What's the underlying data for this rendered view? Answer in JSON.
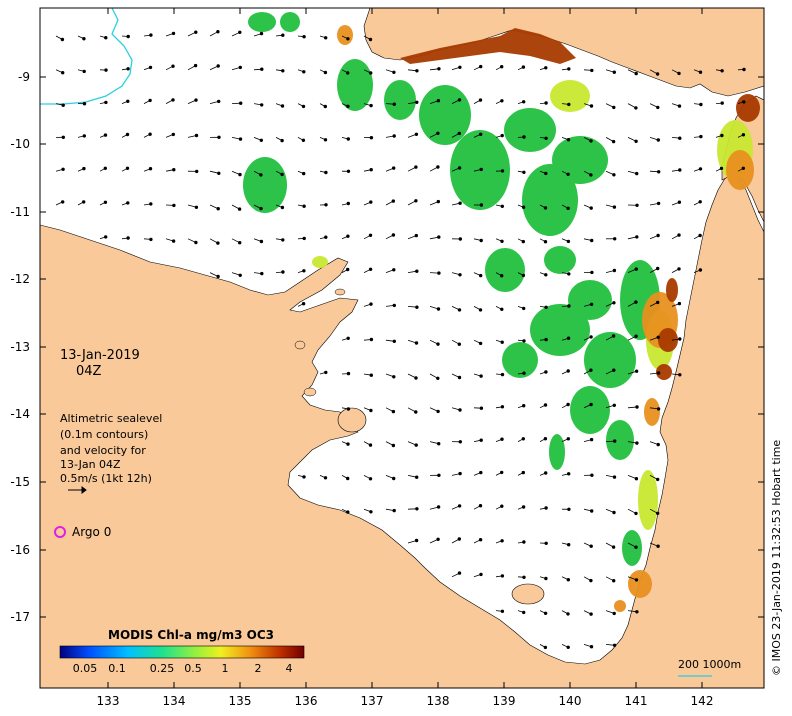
{
  "map": {
    "date_label": "13-Jan-2019",
    "time_label": "04Z",
    "legend_note_lines": [
      "Altimetric sealevel",
      "(0.1m contours)",
      "and velocity for",
      "13-Jan 04Z",
      "0.5m/s (1kt 12h)"
    ],
    "argo_label": "Argo 0",
    "colorbar_title": "MODIS Chl-a mg/m3 OC3",
    "colorbar_ticks": [
      "0.05",
      "0.1",
      "0.25",
      "0.5",
      "1",
      "2",
      "4"
    ],
    "scale_label": "200  1000m",
    "credit": "© IMOS 23-Jan-2019 11:32:53 Hobart time",
    "y_ticks": [
      "-9",
      "-10",
      "-11",
      "-12",
      "-13",
      "-14",
      "-15",
      "-16",
      "-17"
    ],
    "x_ticks": [
      "133",
      "134",
      "135",
      "136",
      "137",
      "138",
      "139",
      "140",
      "141",
      "142"
    ],
    "colors": {
      "land": "#f9c99a",
      "ocean": "#ffffff",
      "argo_marker": "#e020e0",
      "bathy_contour": "#2ad0e0",
      "colorbar_stops": [
        "#000080",
        "#0050ff",
        "#00c0ff",
        "#20e090",
        "#90f040",
        "#f0f020",
        "#f09010",
        "#c03000",
        "#700000"
      ]
    }
  }
}
